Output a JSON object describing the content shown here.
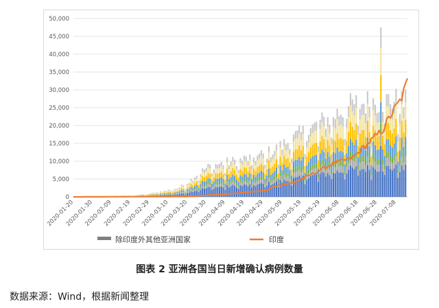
{
  "chart_data": {
    "type": "bar+line",
    "title": "",
    "xlabel": "",
    "ylabel": "",
    "ylim": [
      0,
      50000
    ],
    "yticks": [
      0,
      5000,
      10000,
      15000,
      20000,
      25000,
      30000,
      35000,
      40000,
      45000,
      50000
    ],
    "ytick_labels": [
      "0",
      "5,000",
      "10,000",
      "15,000",
      "20,000",
      "25,000",
      "30,000",
      "35,000",
      "40,000",
      "45,000",
      "50,000"
    ],
    "x_start": "2020-01-20",
    "x_end": "2020-07-14",
    "xtick_labels": [
      "2020-01-20",
      "2020-01-30",
      "2020-02-09",
      "2020-02-19",
      "2020-02-29",
      "2020-03-10",
      "2020-03-20",
      "2020-03-30",
      "2020-04-09",
      "2020-04-19",
      "2020-04-29",
      "2020-05-09",
      "2020-05-19",
      "2020-05-29",
      "2020-06-08",
      "2020-06-18",
      "2020-06-28",
      "2020-07-08"
    ],
    "legend_position": "bottom",
    "series": [
      {
        "name": "除印度外其他亚洲国家",
        "type": "stacked-bar",
        "color": "#7f7f7f",
        "total_points": [
          [
            "2020-01-20",
            100
          ],
          [
            "2020-02-20",
            400
          ],
          [
            "2020-03-01",
            1000
          ],
          [
            "2020-03-15",
            2500
          ],
          [
            "2020-03-20",
            4000
          ],
          [
            "2020-03-25",
            6500
          ],
          [
            "2020-04-01",
            9000
          ],
          [
            "2020-04-15",
            10500
          ],
          [
            "2020-04-25",
            11500
          ],
          [
            "2020-05-05",
            13500
          ],
          [
            "2020-05-15",
            17000
          ],
          [
            "2020-05-25",
            20000
          ],
          [
            "2020-06-05",
            23500
          ],
          [
            "2020-06-15",
            26500
          ],
          [
            "2020-06-25",
            27500
          ],
          [
            "2020-07-05",
            28000
          ],
          [
            "2020-07-13",
            27000
          ]
        ],
        "spikes": [
          [
            "2020-06-30",
            47500
          ]
        ]
      },
      {
        "name": "印度",
        "type": "line",
        "color": "#ed7d31",
        "points": [
          [
            "2020-01-20",
            0
          ],
          [
            "2020-03-20",
            100
          ],
          [
            "2020-04-01",
            500
          ],
          [
            "2020-04-10",
            800
          ],
          [
            "2020-04-20",
            1300
          ],
          [
            "2020-05-01",
            1800
          ],
          [
            "2020-05-05",
            3000
          ],
          [
            "2020-05-15",
            4000
          ],
          [
            "2020-05-25",
            6500
          ],
          [
            "2020-06-05",
            9500
          ],
          [
            "2020-06-15",
            11000
          ],
          [
            "2020-06-25",
            16000
          ],
          [
            "2020-07-01",
            19000
          ],
          [
            "2020-07-05",
            23000
          ],
          [
            "2020-07-10",
            27000
          ],
          [
            "2020-07-12",
            29500
          ],
          [
            "2020-07-14",
            32500
          ]
        ]
      }
    ]
  },
  "caption": "图表 2 亚洲各国当日新增确认病例数量",
  "source": "数据来源：Wind，根据新闻整理"
}
